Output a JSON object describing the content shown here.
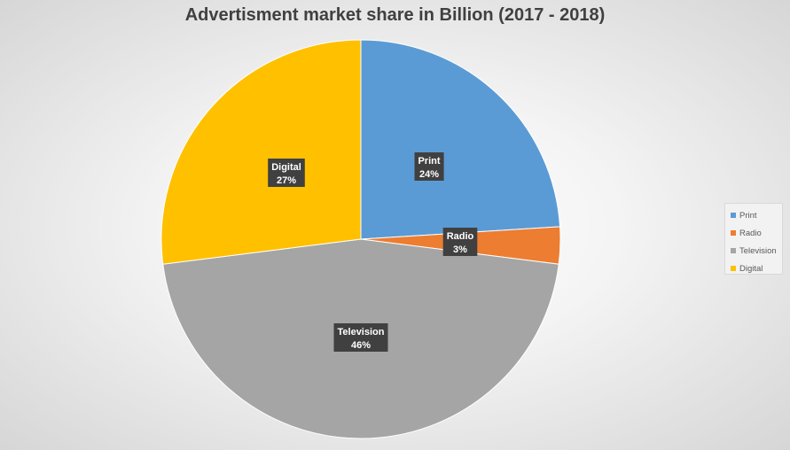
{
  "chart_data": {
    "type": "pie",
    "title": "Advertisment market share in Billion (2017 - 2018)",
    "slices": [
      {
        "label": "Print",
        "value": 24,
        "display": "24%",
        "color": "#5b9bd5"
      },
      {
        "label": "Radio",
        "value": 3,
        "display": "3%",
        "color": "#ed7d31"
      },
      {
        "label": "Television",
        "value": 46,
        "display": "46%",
        "color": "#a5a5a5"
      },
      {
        "label": "Digital",
        "value": 27,
        "display": "27%",
        "color": "#ffc000"
      }
    ],
    "legend": {
      "position": "right",
      "entries": [
        "Print",
        "Radio",
        "Television",
        "Digital"
      ]
    }
  }
}
